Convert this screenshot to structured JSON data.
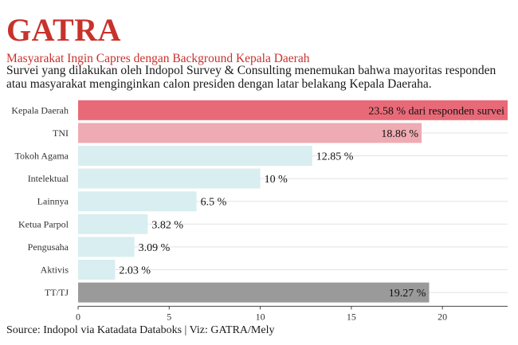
{
  "header": {
    "brand": "GATRA",
    "title": "Masyarakat Ingin Capres dengan Background Kepala Daerah",
    "subtitle_lines": [
      "Survei yang dilakukan oleh Indopol  Survey & Consulting menemukan bahwa mayoritas responden",
      "atau masyarakat menginginkan calon presiden dengan latar belakang Kepala Daeraha."
    ]
  },
  "footer": {
    "source": "Source: Indopol via Katadata Databoks | Viz: GATRA/Mely"
  },
  "colors": {
    "brand": "#c8322b",
    "highlight": "#e86a78",
    "secondary": "#eeabb2",
    "default": "#d8eef0",
    "neutral": "#9a9a9a"
  },
  "chart_data": {
    "type": "bar",
    "orientation": "horizontal",
    "categories": [
      "Kepala Daerah",
      "TNI",
      "Tokoh Agama",
      "Intelektual",
      "Lainnya",
      "Ketua Parpol",
      "Pengusaha",
      "Aktivis",
      "TT/TJ"
    ],
    "values": [
      23.58,
      18.86,
      12.85,
      10,
      6.5,
      3.82,
      3.09,
      2.03,
      19.27
    ],
    "labels": [
      "23.58 % dari responden survei",
      "18.86 %",
      "12.85 %",
      "10 %",
      "6.5 %",
      "3.82 %",
      "3.09 %",
      "2.03 %",
      "19.27 %"
    ],
    "bar_colors": [
      "#e86a78",
      "#eeabb2",
      "#d8eef0",
      "#d8eef0",
      "#d8eef0",
      "#d8eef0",
      "#d8eef0",
      "#d8eef0",
      "#9a9a9a"
    ],
    "xticks": [
      0,
      5,
      10,
      15,
      20
    ],
    "xlim": [
      0,
      23.58
    ],
    "grid": true,
    "legend": "none"
  }
}
